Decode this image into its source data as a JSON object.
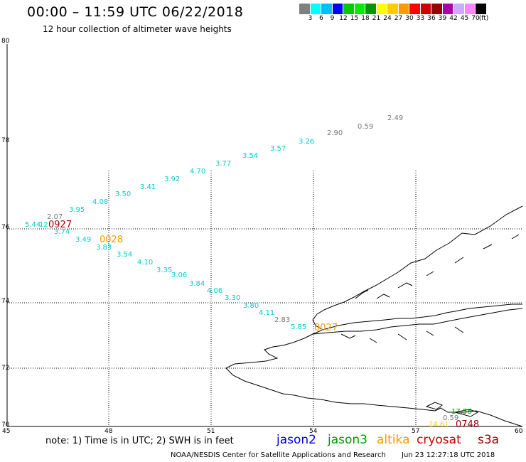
{
  "header": {
    "title": "00:00 – 11:59 UTC 06/22/2018",
    "subtitle": "12 hour collection of altimeter wave heights"
  },
  "colorbar": {
    "swatches": [
      "#7f7f7f",
      "#00ffff",
      "#00bfff",
      "#0000ff",
      "#00cc00",
      "#00ee00",
      "#009900",
      "#ffff00",
      "#ffcc00",
      "#ff9900",
      "#ff0000",
      "#cc0000",
      "#990000",
      "#aa00aa",
      "#ccaaff",
      "#ff88ff",
      "#000000"
    ],
    "labels": [
      "3",
      "6",
      "9",
      "12",
      "15",
      "18",
      "21",
      "24",
      "27",
      "30",
      "33",
      "36",
      "39",
      "42",
      "45",
      "70",
      "(ft)"
    ]
  },
  "axes": {
    "lat_labels": [
      "80",
      "78",
      "76",
      "74",
      "72",
      "70"
    ],
    "lon_labels": [
      "45",
      "48",
      "51",
      "54",
      "57",
      "60"
    ]
  },
  "observations": [
    {
      "text": "2.49",
      "color": "#777777"
    },
    {
      "text": "0.59",
      "color": "#777777"
    },
    {
      "text": "2.90",
      "color": "#777777"
    },
    {
      "text": "3.26",
      "color": "#00cccc"
    },
    {
      "text": "3.57",
      "color": "#00cccc"
    },
    {
      "text": "3.54",
      "color": "#00cccc"
    },
    {
      "text": "3.77",
      "color": "#00cccc"
    },
    {
      "text": "4.70",
      "color": "#00cccc"
    },
    {
      "text": "3.92",
      "color": "#00cccc"
    },
    {
      "text": "3.41",
      "color": "#00cccc"
    },
    {
      "text": "3.50",
      "color": "#00cccc"
    },
    {
      "text": "4.08",
      "color": "#00cccc"
    },
    {
      "text": "3.95",
      "color": "#00cccc"
    },
    {
      "text": "2.07",
      "color": "#777777"
    },
    {
      "text": "5.44",
      "color": "#00cccc"
    },
    {
      "text": "12",
      "color": "#00cccc"
    },
    {
      "text": "3.74",
      "color": "#00cccc"
    },
    {
      "text": "3.49",
      "color": "#00cccc"
    },
    {
      "text": "3.83",
      "color": "#00cccc"
    },
    {
      "text": "3.54",
      "color": "#00cccc"
    },
    {
      "text": "4.10",
      "color": "#00cccc"
    },
    {
      "text": "3.35",
      "color": "#00cccc"
    },
    {
      "text": "3.06",
      "color": "#00cccc"
    },
    {
      "text": "3.84",
      "color": "#00cccc"
    },
    {
      "text": "4.06",
      "color": "#00cccc"
    },
    {
      "text": "3.30",
      "color": "#00cccc"
    },
    {
      "text": "3.80",
      "color": "#00cccc"
    },
    {
      "text": "4.11",
      "color": "#00cccc"
    },
    {
      "text": "2.83",
      "color": "#777777"
    },
    {
      "text": "5.85",
      "color": "#00cccc"
    },
    {
      "text": "17.56",
      "color": "#009900"
    },
    {
      "text": "0.59",
      "color": "#777777"
    },
    {
      "text": "24.61",
      "color": "#ffcc00"
    }
  ],
  "time_labels": [
    {
      "text": "0927",
      "color": "#990000"
    },
    {
      "text": "0028",
      "color": "#ff9900"
    },
    {
      "text": "0027",
      "color": "#ff9900"
    },
    {
      "text": "0748",
      "color": "#990000"
    }
  ],
  "footer": {
    "note": "note:  1) Time is in UTC;  2) SWH is in feet",
    "legend": [
      {
        "label": "jason2",
        "color": "#0000dd"
      },
      {
        "label": "jason3",
        "color": "#009900"
      },
      {
        "label": "altika",
        "color": "#ff9900"
      },
      {
        "label": "cryosat",
        "color": "#cc0000"
      },
      {
        "label": "s3a",
        "color": "#990000"
      }
    ],
    "credit": "NOAA/NESDIS Center for Satellite Applications and Research",
    "timestamp": "Jun 23 12:27:18 UTC 2018"
  }
}
